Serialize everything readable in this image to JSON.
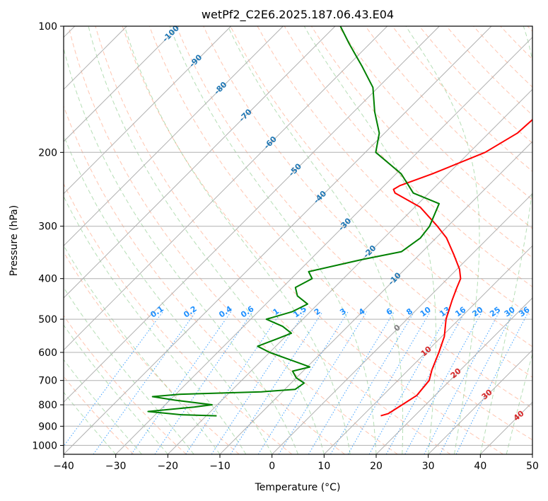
{
  "chart_data": {
    "type": "line",
    "title": "wetPf2_C2E6.2025.187.06.43.E04",
    "xlabel": "Temperature (°C)",
    "ylabel": "Pressure (hPa)",
    "xlim": [
      -40,
      50
    ],
    "ylim": [
      1050,
      100
    ],
    "y_scale": "log",
    "grid": true,
    "x_ticks": [
      -40,
      -30,
      -20,
      -10,
      0,
      10,
      20,
      30,
      40,
      50
    ],
    "y_ticks": [
      100,
      200,
      300,
      400,
      500,
      600,
      700,
      800,
      900,
      1000
    ],
    "skew_note": "skew-T log-P diagram",
    "series": [
      {
        "color": "#ff0000",
        "points": [
          [
            13.5,
            850
          ],
          [
            14.5,
            840
          ],
          [
            15.5,
            800
          ],
          [
            16.5,
            760
          ],
          [
            16.0,
            700
          ],
          [
            14.5,
            660
          ],
          [
            12.5,
            600
          ],
          [
            10.5,
            550
          ],
          [
            7.5,
            500
          ],
          [
            5.0,
            450
          ],
          [
            3.5,
            420
          ],
          [
            2.5,
            400
          ],
          [
            0.5,
            380
          ],
          [
            -3.5,
            350
          ],
          [
            -8.0,
            320
          ],
          [
            -12.0,
            300
          ],
          [
            -19.0,
            270
          ],
          [
            -26.5,
            250
          ],
          [
            -27.5,
            245
          ],
          [
            -27.0,
            240
          ],
          [
            -23.0,
            225
          ],
          [
            -17.0,
            200
          ],
          [
            -14.5,
            180
          ],
          [
            -14.0,
            160
          ],
          [
            -16.5,
            140
          ],
          [
            -21.0,
            125
          ],
          [
            -22.0,
            110
          ],
          [
            -24.0,
            100
          ]
        ]
      },
      {
        "color": "#008000",
        "points": [
          [
            -18.0,
            850
          ],
          [
            -25.0,
            845
          ],
          [
            -32.0,
            830
          ],
          [
            -24.0,
            810
          ],
          [
            -21.0,
            800
          ],
          [
            -29.0,
            780
          ],
          [
            -34.0,
            765
          ],
          [
            -29.0,
            755
          ],
          [
            -14.0,
            745
          ],
          [
            -8.0,
            735
          ],
          [
            -7.5,
            710
          ],
          [
            -10.0,
            690
          ],
          [
            -12.0,
            665
          ],
          [
            -9.5,
            650
          ],
          [
            -11.5,
            640
          ],
          [
            -20.0,
            600
          ],
          [
            -23.5,
            580
          ],
          [
            -21.5,
            560
          ],
          [
            -19.5,
            540
          ],
          [
            -22.5,
            520
          ],
          [
            -27.0,
            500
          ],
          [
            -23.5,
            480
          ],
          [
            -22.0,
            460
          ],
          [
            -25.5,
            440
          ],
          [
            -27.5,
            420
          ],
          [
            -26.0,
            400
          ],
          [
            -28.0,
            385
          ],
          [
            -20.0,
            360
          ],
          [
            -14.0,
            345
          ],
          [
            -13.0,
            320
          ],
          [
            -13.5,
            300
          ],
          [
            -16.0,
            265
          ],
          [
            -23.0,
            250
          ],
          [
            -29.0,
            225
          ],
          [
            -38.0,
            200
          ],
          [
            -41.0,
            180
          ],
          [
            -46.0,
            160
          ],
          [
            -51.0,
            140
          ],
          [
            -57.0,
            125
          ],
          [
            -64.0,
            110
          ],
          [
            -69.0,
            100
          ]
        ]
      }
    ],
    "isotherm_labels": [
      "-100",
      "-90",
      "-80",
      "-70",
      "-60",
      "-50",
      "-40",
      "-30",
      "-20",
      "-10"
    ],
    "mixing_ratio_labels": [
      "0.1",
      "0.2",
      "0.4",
      "0.6",
      "1",
      "1.5",
      "2",
      "3",
      "4",
      "6",
      "8",
      "10",
      "13",
      "16",
      "20",
      "25",
      "30",
      "36"
    ],
    "moist_adiabat_labels": [
      "0",
      "10",
      "20",
      "30",
      "40"
    ],
    "colors": {
      "temperature": "#ff0000",
      "dewpoint": "#008000",
      "isotherm_label": "#1f77b4",
      "mixing_ratio": "#1e90ff",
      "moist_adiabat_label": "#d62728",
      "dry_adiabat": "#ff7f50",
      "moist_adiabat": "#2ca02c",
      "grid": "#b0b0b0"
    }
  }
}
